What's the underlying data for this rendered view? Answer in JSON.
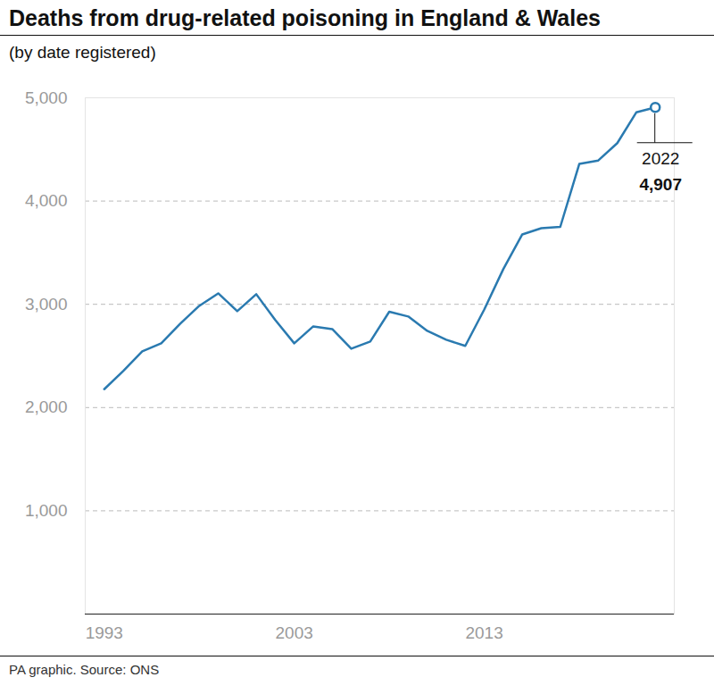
{
  "chart_data": {
    "type": "line",
    "title": "Deaths from drug-related poisoning in England & Wales",
    "subtitle": "(by date registered)",
    "caption": "PA graphic. Source: ONS",
    "x": [
      1993,
      1994,
      1995,
      1996,
      1997,
      1998,
      1999,
      2000,
      2001,
      2002,
      2003,
      2004,
      2005,
      2006,
      2007,
      2008,
      2009,
      2010,
      2011,
      2012,
      2013,
      2014,
      2015,
      2016,
      2017,
      2018,
      2019,
      2020,
      2021,
      2022
    ],
    "values": [
      2178,
      2354,
      2544,
      2622,
      2812,
      2985,
      3106,
      2934,
      3098,
      2848,
      2622,
      2786,
      2760,
      2570,
      2640,
      2928,
      2882,
      2743,
      2657,
      2597,
      2950,
      3340,
      3677,
      3737,
      3750,
      4359,
      4393,
      4561,
      4859,
      4907
    ],
    "color": "#2a7ab0",
    "xlim": [
      1992,
      2023
    ],
    "xticks": [
      1993,
      2003,
      2013
    ],
    "ylim": [
      0,
      5000
    ],
    "yticks": [
      {
        "value": 1000,
        "label": "1,000"
      },
      {
        "value": 2000,
        "label": "2,000"
      },
      {
        "value": 3000,
        "label": "3,000"
      },
      {
        "value": 4000,
        "label": "4,000"
      },
      {
        "value": 5000,
        "label": "5,000"
      }
    ],
    "grid": true,
    "annotation": {
      "x": 2022,
      "text": "2022",
      "value": 4907,
      "value_label": "4,907"
    }
  }
}
